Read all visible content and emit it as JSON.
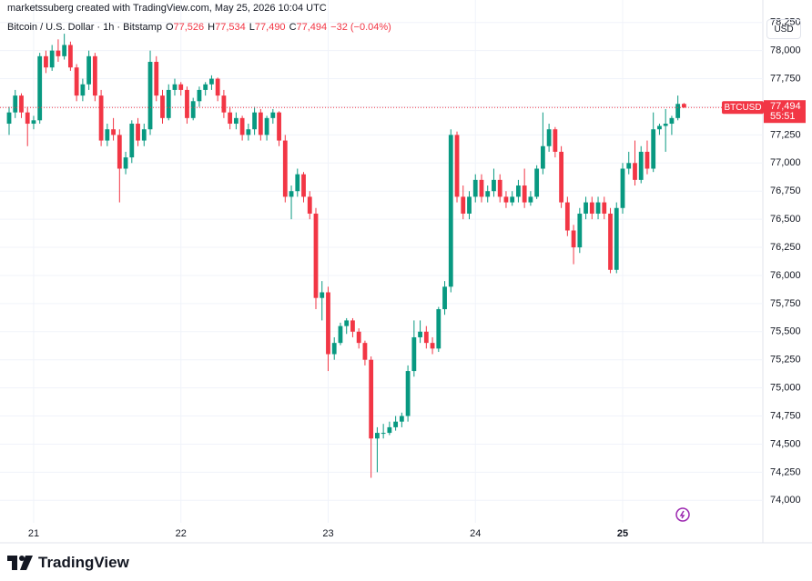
{
  "chart_data": {
    "type": "candlestick",
    "attribution": "marketssuberg created with TradingView.com, May 25, 2026 10:04 UTC",
    "title": "Bitcoin / U.S. Dollar · 1h · Bitstamp",
    "ohlc_legend": [
      {
        "key": "O",
        "value": 77526,
        "label": "77,526"
      },
      {
        "key": "H",
        "value": 77534,
        "label": "77,534"
      },
      {
        "key": "L",
        "value": 77490,
        "label": "77,490"
      },
      {
        "key": "C",
        "value": 77494,
        "label": "77,494"
      }
    ],
    "change_label": "−32 (−0.04%)",
    "currency": "USD",
    "symbol": "BTCUSD",
    "last_price": {
      "value": 77494,
      "label": "77,494"
    },
    "countdown": "55:51",
    "brand": "TradingView",
    "up_color": "#089981",
    "down_color": "#f23645",
    "open": [
      77350,
      77450,
      77600,
      77450,
      77350,
      77380,
      77950,
      77850,
      78000,
      77950,
      78050,
      77850,
      77600,
      77700,
      77950,
      77600,
      77200,
      77300,
      77250,
      76950,
      77050,
      77350,
      77200,
      77300,
      77900,
      77600,
      77400,
      77650,
      77700,
      77650,
      77400,
      77550,
      77650,
      77700,
      77750,
      77600,
      77450,
      77350,
      77400,
      77250,
      77300,
      77450,
      77250,
      77400,
      77450,
      77200,
      76700,
      76750,
      76900,
      76700,
      76550,
      75800,
      75850,
      75300,
      75400,
      75550,
      75600,
      75500,
      75400,
      75250,
      74550,
      74600,
      74600,
      74650,
      74700,
      74750,
      75150,
      75450,
      75500,
      75400,
      75350,
      75700,
      75900,
      77250,
      76700,
      76550,
      76700,
      76850,
      76700,
      76750,
      76850,
      76700,
      76650,
      76700,
      76800,
      76650,
      76700,
      76950,
      77150,
      77300,
      77100,
      76650,
      76400,
      76250,
      76550,
      76650,
      76550,
      76650,
      76550,
      76050,
      76600,
      76950,
      77000,
      76850,
      77100,
      76950,
      77300,
      77330,
      77350,
      77400,
      77526
    ],
    "high": [
      77500,
      77650,
      77620,
      77500,
      77420,
      77980,
      78000,
      78050,
      78100,
      78150,
      78080,
      77880,
      77750,
      78000,
      77980,
      77650,
      77350,
      77400,
      77300,
      77100,
      77380,
      77400,
      77350,
      78000,
      77950,
      77650,
      77700,
      77750,
      77720,
      77680,
      77580,
      77680,
      77720,
      77780,
      77760,
      77650,
      77500,
      77450,
      77420,
      77350,
      77500,
      77480,
      77420,
      77480,
      77460,
      77250,
      76800,
      76950,
      76920,
      76750,
      76600,
      75950,
      75900,
      75450,
      75580,
      75620,
      75620,
      75530,
      75420,
      75280,
      74650,
      74680,
      74700,
      74750,
      74780,
      75200,
      75600,
      75600,
      75550,
      75450,
      75720,
      75950,
      77300,
      77280,
      76800,
      76750,
      76900,
      76900,
      76800,
      76950,
      76900,
      76750,
      76750,
      76850,
      76950,
      76750,
      76980,
      77450,
      77350,
      77320,
      77150,
      76700,
      76450,
      76600,
      76700,
      76700,
      76700,
      76700,
      76600,
      76650,
      77000,
      77100,
      77200,
      77150,
      77200,
      77450,
      77350,
      77480,
      77420,
      77600,
      77534
    ],
    "low": [
      77250,
      77400,
      77400,
      77150,
      77300,
      77350,
      77800,
      77820,
      77900,
      77920,
      77820,
      77550,
      77550,
      77650,
      77550,
      77150,
      77150,
      77200,
      76650,
      76900,
      77000,
      77150,
      77150,
      77250,
      77550,
      77350,
      77380,
      77600,
      77600,
      77350,
      77380,
      77500,
      77600,
      77650,
      77550,
      77400,
      77300,
      77300,
      77200,
      77200,
      77250,
      77200,
      77200,
      77350,
      77150,
      76650,
      76500,
      76700,
      76650,
      76500,
      75700,
      75600,
      75150,
      75250,
      75380,
      75480,
      75450,
      75350,
      75200,
      74200,
      74250,
      74550,
      74580,
      74620,
      74650,
      74700,
      75100,
      75400,
      75350,
      75300,
      75320,
      75650,
      75850,
      76650,
      76500,
      76500,
      76650,
      76650,
      76650,
      76700,
      76650,
      76600,
      76620,
      76650,
      76600,
      76620,
      76680,
      76900,
      77100,
      77050,
      76600,
      76350,
      76100,
      76200,
      76500,
      76500,
      76500,
      76500,
      76020,
      76020,
      76550,
      76900,
      76800,
      76820,
      76900,
      76920,
      77250,
      77100,
      77250,
      77380,
      77490
    ],
    "close": [
      77450,
      77600,
      77450,
      77350,
      77380,
      77950,
      77850,
      78000,
      77950,
      78050,
      77850,
      77600,
      77700,
      77950,
      77600,
      77200,
      77300,
      77250,
      76950,
      77050,
      77350,
      77200,
      77300,
      77900,
      77600,
      77400,
      77650,
      77700,
      77650,
      77400,
      77550,
      77650,
      77700,
      77750,
      77600,
      77450,
      77350,
      77400,
      77250,
      77300,
      77450,
      77250,
      77400,
      77450,
      77200,
      76700,
      76750,
      76900,
      76700,
      76550,
      75800,
      75850,
      75300,
      75400,
      75550,
      75600,
      75500,
      75400,
      75250,
      74550,
      74600,
      74600,
      74650,
      74700,
      74750,
      75150,
      75450,
      75500,
      75400,
      75350,
      75700,
      75900,
      77250,
      76700,
      76550,
      76700,
      76850,
      76700,
      76750,
      76850,
      76700,
      76650,
      76700,
      76800,
      76650,
      76700,
      76950,
      77150,
      77300,
      77100,
      76650,
      76400,
      76250,
      76550,
      76650,
      76550,
      76650,
      76550,
      76050,
      76600,
      76950,
      77000,
      76850,
      77100,
      76950,
      77300,
      77330,
      77350,
      77400,
      77526,
      77494
    ],
    "xticks": [
      {
        "value": 4,
        "label": "21"
      },
      {
        "value": 28,
        "label": "22"
      },
      {
        "value": 52,
        "label": "23"
      },
      {
        "value": 76,
        "label": "24"
      },
      {
        "value": 100,
        "label": "25"
      }
    ],
    "ylim": [
      73800,
      78450
    ],
    "yticks": [
      {
        "value": 74000,
        "label": "74,000"
      },
      {
        "value": 74250,
        "label": "74,250"
      },
      {
        "value": 74500,
        "label": "74,500"
      },
      {
        "value": 74750,
        "label": "74,750"
      },
      {
        "value": 75000,
        "label": "75,000"
      },
      {
        "value": 75250,
        "label": "75,250"
      },
      {
        "value": 75500,
        "label": "75,500"
      },
      {
        "value": 75750,
        "label": "75,750"
      },
      {
        "value": 76000,
        "label": "76,000"
      },
      {
        "value": 76250,
        "label": "76,250"
      },
      {
        "value": 76500,
        "label": "76,500"
      },
      {
        "value": 76750,
        "label": "76,750"
      },
      {
        "value": 77000,
        "label": "77,000"
      },
      {
        "value": 77250,
        "label": "77,250"
      },
      {
        "value": 77500,
        "label": "77,500"
      },
      {
        "value": 77750,
        "label": "77,750"
      },
      {
        "value": 78000,
        "label": "78,000"
      },
      {
        "value": 78250,
        "label": "78,250"
      }
    ],
    "grid": true
  }
}
